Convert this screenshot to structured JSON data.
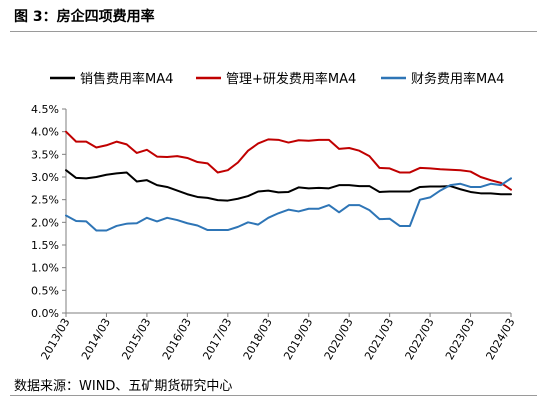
{
  "figure": {
    "title": "图 3：房企四项费用率",
    "source": "数据来源：WIND、五矿期货研究中心"
  },
  "chart_data": {
    "type": "line",
    "title": "",
    "xlabel": "",
    "ylabel": "",
    "ylim": [
      0,
      4.5
    ],
    "yticks": [
      "0.0%",
      "0.5%",
      "1.0%",
      "1.5%",
      "2.0%",
      "2.5%",
      "3.0%",
      "3.5%",
      "4.0%",
      "4.5%"
    ],
    "xticks": [
      "2013/03",
      "2014/03",
      "2015/03",
      "2016/03",
      "2017/03",
      "2018/03",
      "2019/03",
      "2020/03",
      "2021/03",
      "2022/03",
      "2023/03",
      "2024/03"
    ],
    "legend_position": "top",
    "grid": false,
    "x": [
      "2013/03",
      "2013/06",
      "2013/09",
      "2013/12",
      "2014/03",
      "2014/06",
      "2014/09",
      "2014/12",
      "2015/03",
      "2015/06",
      "2015/09",
      "2015/12",
      "2016/03",
      "2016/06",
      "2016/09",
      "2016/12",
      "2017/03",
      "2017/06",
      "2017/09",
      "2017/12",
      "2018/03",
      "2018/06",
      "2018/09",
      "2018/12",
      "2019/03",
      "2019/06",
      "2019/09",
      "2019/12",
      "2020/03",
      "2020/06",
      "2020/09",
      "2020/12",
      "2021/03",
      "2021/06",
      "2021/09",
      "2021/12",
      "2022/03",
      "2022/06",
      "2022/09",
      "2022/12",
      "2023/03",
      "2023/06",
      "2023/09",
      "2023/12",
      "2024/03"
    ],
    "series": [
      {
        "name": "销售费用率MA4",
        "color": "#000000",
        "values": [
          3.15,
          2.98,
          2.97,
          3.0,
          3.05,
          3.08,
          3.1,
          2.9,
          2.93,
          2.82,
          2.78,
          2.7,
          2.62,
          2.56,
          2.54,
          2.49,
          2.48,
          2.52,
          2.58,
          2.68,
          2.7,
          2.66,
          2.67,
          2.77,
          2.75,
          2.76,
          2.75,
          2.82,
          2.82,
          2.8,
          2.8,
          2.67,
          2.68,
          2.68,
          2.68,
          2.78,
          2.79,
          2.79,
          2.8,
          2.73,
          2.67,
          2.64,
          2.64,
          2.62,
          2.62
        ]
      },
      {
        "name": "管理+研发费用率MA4",
        "color": "#c00000",
        "values": [
          4.0,
          3.78,
          3.78,
          3.65,
          3.7,
          3.78,
          3.72,
          3.53,
          3.6,
          3.45,
          3.44,
          3.46,
          3.42,
          3.33,
          3.3,
          3.1,
          3.15,
          3.32,
          3.58,
          3.74,
          3.83,
          3.82,
          3.76,
          3.81,
          3.8,
          3.82,
          3.82,
          3.62,
          3.64,
          3.58,
          3.46,
          3.2,
          3.19,
          3.1,
          3.1,
          3.2,
          3.19,
          3.17,
          3.16,
          3.15,
          3.12,
          3.0,
          2.93,
          2.87,
          2.72
        ]
      },
      {
        "name": "财务费用率MA4",
        "color": "#2e75b6",
        "values": [
          2.15,
          2.03,
          2.02,
          1.82,
          1.82,
          1.92,
          1.97,
          1.98,
          2.1,
          2.02,
          2.1,
          2.05,
          1.98,
          1.93,
          1.83,
          1.83,
          1.83,
          1.9,
          2.0,
          1.95,
          2.1,
          2.2,
          2.28,
          2.24,
          2.3,
          2.3,
          2.38,
          2.22,
          2.38,
          2.38,
          2.27,
          2.07,
          2.08,
          1.92,
          1.92,
          2.5,
          2.55,
          2.7,
          2.82,
          2.85,
          2.78,
          2.78,
          2.85,
          2.82,
          2.97
        ]
      }
    ]
  }
}
